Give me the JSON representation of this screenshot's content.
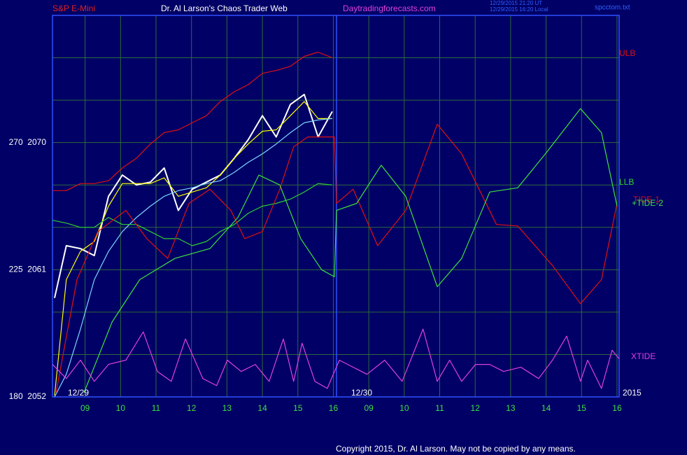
{
  "chart_data": {
    "type": "line",
    "header": {
      "symbol": "S&P E-Mini",
      "title": "Dr. Al Larson's Chaos Trader Web",
      "site": "Daytradingforecasts.com",
      "stamp_ut": "12/29/2015 21:20 UT",
      "stamp_local": "12/29/2015 16:20 Local",
      "file": "spcctom.txt"
    },
    "day_labels": [
      "12/29",
      "12/30"
    ],
    "year": "2015",
    "copyright": "Copyright 2015, Dr. Al Larson. May not be copied by any means.",
    "xlim": [
      0.08,
      16.06
    ],
    "xticks": [
      {
        "value": 1,
        "label": "09"
      },
      {
        "value": 2,
        "label": "10"
      },
      {
        "value": 3,
        "label": "11"
      },
      {
        "value": 4,
        "label": "12"
      },
      {
        "value": 5,
        "label": "13"
      },
      {
        "value": 6,
        "label": "14"
      },
      {
        "value": 7,
        "label": "15"
      },
      {
        "value": 8,
        "label": "16"
      },
      {
        "value": 9,
        "label": "09"
      },
      {
        "value": 10,
        "label": "10"
      },
      {
        "value": 11,
        "label": "11"
      },
      {
        "value": 12,
        "label": "12"
      },
      {
        "value": 13,
        "label": "13"
      },
      {
        "value": 14,
        "label": "14"
      },
      {
        "value": 15,
        "label": "15"
      },
      {
        "value": 16,
        "label": "16"
      }
    ],
    "ylim": [
      2052,
      2079
    ],
    "yticks": [
      {
        "value": 2052,
        "label": "180  2052"
      },
      {
        "value": 2061,
        "label": "225  2061"
      },
      {
        "value": 2070,
        "label": "270  2070"
      }
    ],
    "ygrid": [
      2055,
      2058,
      2064,
      2067,
      2073,
      2076
    ],
    "grid": true,
    "series": [
      {
        "color": "#ffffff",
        "x": [
          0.14,
          0.47,
          0.87,
          1.26,
          1.66,
          2.05,
          2.45,
          2.84,
          3.23,
          3.63,
          4.02,
          4.42,
          4.81,
          5.21,
          5.6,
          6.0,
          6.39,
          6.79,
          7.18,
          7.57,
          7.97
        ],
        "values": [
          2059.0,
          2062.7,
          2062.5,
          2062.0,
          2066.2,
          2067.7,
          2067.0,
          2067.2,
          2068.2,
          2065.2,
          2066.7,
          2067.2,
          2067.7,
          2068.9,
          2070.2,
          2071.9,
          2070.4,
          2072.7,
          2073.4,
          2070.4,
          2072.2
        ]
      },
      {
        "color": "#ffff00",
        "x": [
          0.14,
          0.47,
          0.87,
          1.26,
          1.66,
          2.05,
          2.45,
          2.84,
          3.23,
          3.63,
          4.02,
          4.42,
          4.81,
          5.21,
          5.6,
          6.0,
          6.39,
          6.79,
          7.18,
          7.57,
          7.97
        ],
        "values": [
          2052.1,
          2060.3,
          2062.3,
          2063.0,
          2065.5,
          2067.1,
          2067.1,
          2067.1,
          2067.5,
          2066.2,
          2066.5,
          2066.8,
          2067.7,
          2068.9,
          2069.9,
          2070.8,
          2070.9,
          2071.9,
          2072.9,
          2071.7,
          2071.7
        ]
      },
      {
        "color": "#7fd4ff",
        "x": [
          0.14,
          0.47,
          0.87,
          1.26,
          1.66,
          2.05,
          2.45,
          2.84,
          3.23,
          3.63,
          4.02,
          4.42,
          4.81,
          5.21,
          5.6,
          6.0,
          6.39,
          6.79,
          7.18,
          7.57,
          7.97
        ],
        "values": [
          2052.0,
          2053.6,
          2056.8,
          2060.3,
          2062.3,
          2063.7,
          2064.7,
          2065.5,
          2066.2,
          2066.6,
          2066.8,
          2067.1,
          2067.3,
          2067.9,
          2068.6,
          2069.2,
          2069.9,
          2070.7,
          2071.4,
          2071.6,
          2071.7
        ]
      },
      {
        "name": "ULB",
        "color": "#e01010",
        "x": [
          0.08,
          0.47,
          0.87,
          1.26,
          1.66,
          2.05,
          2.45,
          2.84,
          3.23,
          3.63,
          4.02,
          4.42,
          4.81,
          5.21,
          5.6,
          6.0,
          6.39,
          6.79,
          7.18,
          7.57,
          7.97
        ],
        "values": [
          2066.6,
          2066.6,
          2067.1,
          2067.1,
          2067.3,
          2068.2,
          2068.9,
          2069.9,
          2070.7,
          2070.9,
          2071.4,
          2071.9,
          2072.9,
          2073.6,
          2074.1,
          2074.9,
          2075.1,
          2075.4,
          2076.1,
          2076.4,
          2076.0
        ]
      },
      {
        "name": "LLB",
        "color": "#30d030",
        "x": [
          0.08,
          0.47,
          0.87,
          1.26,
          1.66,
          2.05,
          2.45,
          2.84,
          3.23,
          3.63,
          4.02,
          4.42,
          4.81,
          5.21,
          5.6,
          6.0,
          6.39,
          6.79,
          7.18,
          7.57,
          7.97
        ],
        "values": [
          2064.5,
          2064.3,
          2064.0,
          2064.0,
          2064.7,
          2064.2,
          2064.2,
          2063.7,
          2063.2,
          2063.2,
          2062.7,
          2063.0,
          2063.7,
          2064.2,
          2065.0,
          2065.5,
          2065.7,
          2066.0,
          2066.5,
          2067.1,
          2067.0
        ]
      },
      {
        "name": "TIDE-1",
        "color": "#e01010",
        "x": [
          0.18,
          0.77,
          1.36,
          2.15,
          2.74,
          3.33,
          3.93,
          4.52,
          5.11,
          5.5,
          6.0,
          6.49,
          6.88,
          7.28,
          7.67,
          8.03,
          8.09,
          8.56,
          9.25,
          10.04,
          10.93,
          11.62,
          12.6,
          13.2,
          14.18,
          14.97,
          15.56,
          16.0
        ],
        "values": [
          2052.3,
          2060.3,
          2063.7,
          2065.2,
          2063.2,
          2061.8,
          2065.7,
          2066.7,
          2065.2,
          2063.2,
          2063.7,
          2066.7,
          2069.7,
          2070.4,
          2070.4,
          2070.4,
          2065.7,
          2066.7,
          2062.7,
          2065.2,
          2071.3,
          2069.2,
          2064.2,
          2064.1,
          2061.3,
          2058.6,
          2060.3,
          2065.7
        ]
      },
      {
        "name": "+TIDE-2",
        "color": "#40e040",
        "x": [
          0.97,
          1.76,
          2.54,
          3.53,
          4.52,
          5.31,
          5.9,
          6.49,
          7.08,
          7.67,
          8.03,
          8.09,
          8.66,
          9.35,
          10.04,
          10.93,
          11.62,
          12.41,
          13.2,
          13.98,
          14.97,
          15.56,
          16.0
        ],
        "values": [
          2052.3,
          2057.3,
          2060.3,
          2061.8,
          2062.5,
          2064.7,
          2067.7,
          2067.0,
          2063.2,
          2061.0,
          2060.5,
          2065.2,
          2065.7,
          2068.4,
          2066.2,
          2059.8,
          2061.8,
          2066.5,
          2066.8,
          2069.2,
          2072.4,
          2070.7,
          2065.5
        ]
      },
      {
        "name": "XTIDE",
        "color": "#e040e0",
        "x": [
          0.08,
          0.47,
          0.87,
          1.26,
          1.66,
          2.15,
          2.64,
          3.04,
          3.43,
          3.83,
          4.32,
          4.71,
          5.01,
          5.4,
          5.8,
          6.19,
          6.59,
          6.88,
          7.12,
          7.48,
          7.83,
          8.17,
          8.56,
          8.95,
          9.45,
          9.94,
          10.53,
          10.93,
          11.28,
          11.62,
          12.01,
          12.41,
          12.8,
          13.29,
          13.79,
          14.18,
          14.58,
          14.97,
          15.17,
          15.56,
          15.86,
          16.06
        ],
        "values": [
          2054.3,
          2053.3,
          2054.6,
          2053.1,
          2054.3,
          2054.6,
          2056.6,
          2053.8,
          2053.1,
          2056.1,
          2053.3,
          2052.8,
          2054.6,
          2053.8,
          2054.3,
          2053.1,
          2056.1,
          2053.1,
          2055.8,
          2053.1,
          2052.6,
          2054.6,
          2054.1,
          2053.6,
          2054.6,
          2053.1,
          2056.8,
          2053.1,
          2054.6,
          2053.1,
          2054.3,
          2054.3,
          2053.8,
          2054.1,
          2053.3,
          2054.6,
          2056.3,
          2053.1,
          2054.6,
          2052.6,
          2055.3,
          2054.7
        ]
      }
    ]
  }
}
